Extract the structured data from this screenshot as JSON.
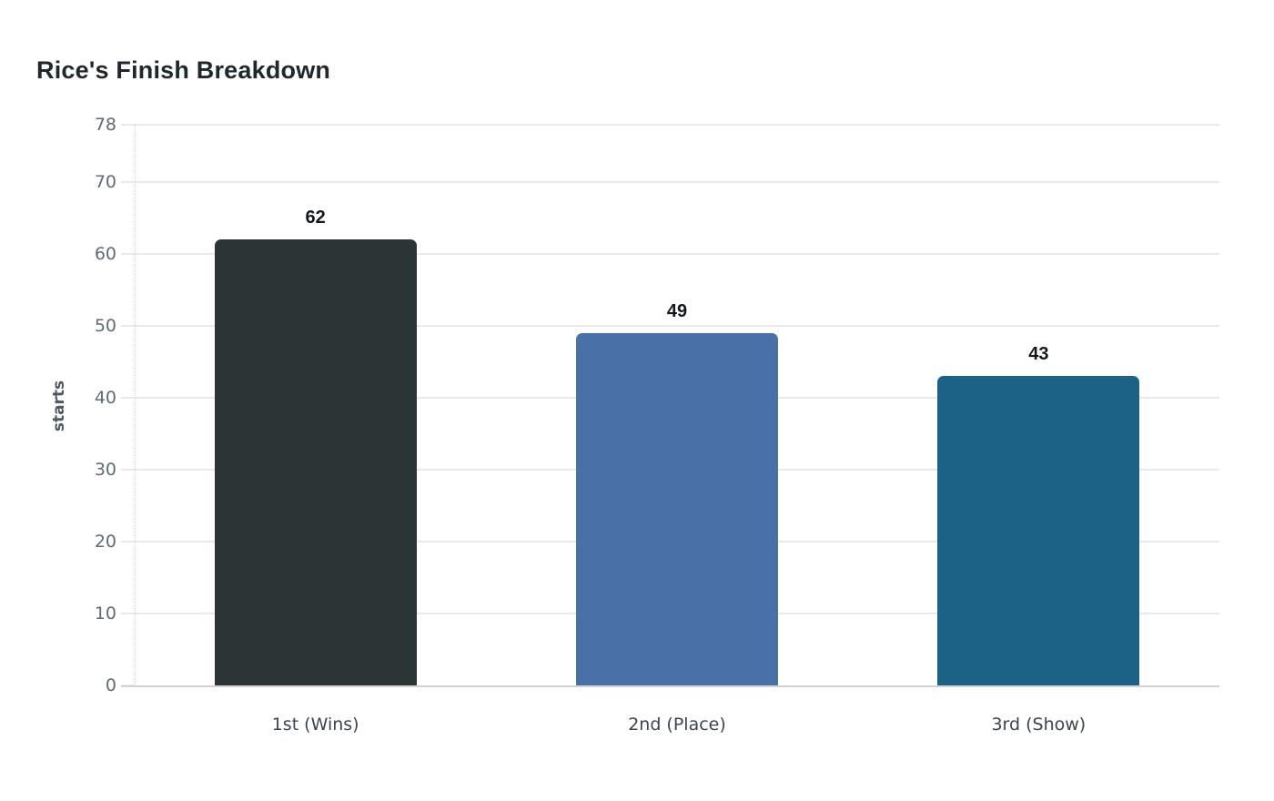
{
  "chart_data": {
    "type": "bar",
    "title": "Rice's Finish Breakdown",
    "categories": [
      "1st (Wins)",
      "2nd (Place)",
      "3rd (Show)"
    ],
    "values": [
      62,
      49,
      43
    ],
    "data_labels": [
      "62",
      "49",
      "43"
    ],
    "bar_colors": [
      "#2c3436",
      "#4a70a8",
      "#1c6287"
    ],
    "xlabel": "",
    "ylabel": "starts",
    "ylim": [
      0,
      78
    ],
    "yticks": [
      0,
      10,
      20,
      30,
      40,
      50,
      60,
      70,
      78
    ],
    "grid": "horizontal",
    "legend": "none"
  },
  "colors": {
    "background": "#ffffff",
    "title_text": "#20282e",
    "gridline": "#e9e9e9",
    "axis_line": "#d2d2d2",
    "y_tick_text": "#5f6b75",
    "x_tick_text": "#3a454f",
    "value_label_text": "#14181c",
    "y_axis_title_text": "#4d5862"
  }
}
